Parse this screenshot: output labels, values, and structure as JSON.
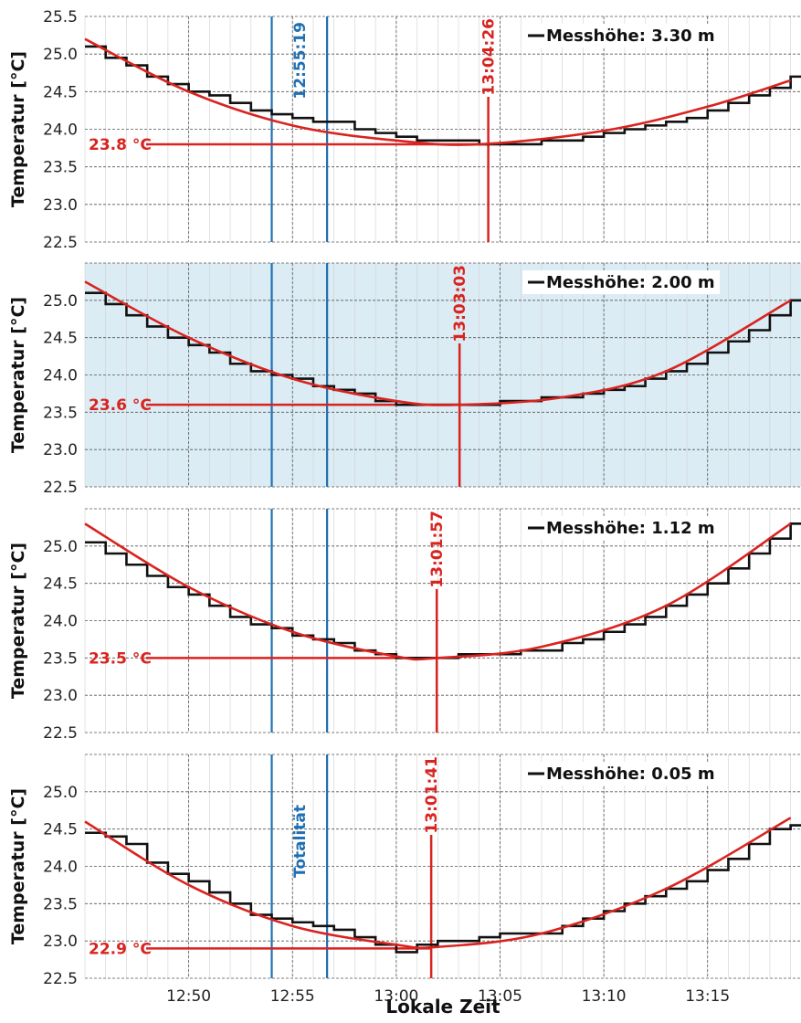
{
  "chart_data": {
    "type": "line",
    "xlabel": "Lokale Zeit",
    "ylabel": "Temperatur [°C]",
    "x_ticks": [
      "12:50",
      "12:55",
      "13:00",
      "13:05",
      "13:10",
      "13:15"
    ],
    "x_range": [
      "12:45:00",
      "13:19:30"
    ],
    "y_ticks": [
      22.5,
      23.0,
      23.5,
      24.0,
      24.5,
      25.0,
      25.5
    ],
    "totality_start": "12:54:00",
    "totality_end": "12:56:40",
    "totality_label": "Totalität",
    "totality_time_label": "12:55:19",
    "colors": {
      "measured": "#111111",
      "fit": "#d9231f",
      "totality": "#1f6fb2",
      "highlight_bg": "#dbecf4",
      "grid": "#999999"
    },
    "panels": [
      {
        "legend": "Messhöhe: 3.30 m",
        "min_temp_label": "23.8 °C",
        "min_temp": 23.8,
        "min_time_label": "13:04:26",
        "min_time": "13:04:26",
        "ylim": [
          22.5,
          25.5
        ],
        "yticks_shown": [
          22.5,
          23.0,
          23.5,
          24.0,
          24.5,
          25.0,
          25.5
        ],
        "highlighted": false,
        "show_totality_time": true,
        "show_totality_text": false,
        "fit_curve": [
          [
            "12:45",
            25.2
          ],
          [
            "12:50",
            24.5
          ],
          [
            "12:55",
            24.05
          ],
          [
            "13:00",
            23.85
          ],
          [
            "13:04",
            23.8
          ],
          [
            "13:10",
            23.98
          ],
          [
            "13:15",
            24.3
          ],
          [
            "13:19",
            24.65
          ]
        ],
        "measured": [
          [
            "12:45",
            25.1
          ],
          [
            "12:46",
            24.95
          ],
          [
            "12:47",
            24.85
          ],
          [
            "12:48",
            24.7
          ],
          [
            "12:49",
            24.6
          ],
          [
            "12:50",
            24.5
          ],
          [
            "12:51",
            24.45
          ],
          [
            "12:52",
            24.35
          ],
          [
            "12:53",
            24.25
          ],
          [
            "12:54",
            24.2
          ],
          [
            "12:55",
            24.15
          ],
          [
            "12:56",
            24.1
          ],
          [
            "12:57",
            24.1
          ],
          [
            "12:58",
            24.0
          ],
          [
            "12:59",
            23.95
          ],
          [
            "13:00",
            23.9
          ],
          [
            "13:01",
            23.85
          ],
          [
            "13:02",
            23.85
          ],
          [
            "13:03",
            23.85
          ],
          [
            "13:04",
            23.8
          ],
          [
            "13:05",
            23.8
          ],
          [
            "13:06",
            23.8
          ],
          [
            "13:07",
            23.85
          ],
          [
            "13:08",
            23.85
          ],
          [
            "13:09",
            23.9
          ],
          [
            "13:10",
            23.95
          ],
          [
            "13:11",
            24.0
          ],
          [
            "13:12",
            24.05
          ],
          [
            "13:13",
            24.1
          ],
          [
            "13:14",
            24.15
          ],
          [
            "13:15",
            24.25
          ],
          [
            "13:16",
            24.35
          ],
          [
            "13:17",
            24.45
          ],
          [
            "13:18",
            24.55
          ],
          [
            "13:19",
            24.7
          ]
        ]
      },
      {
        "legend": "Messhöhe: 2.00 m",
        "min_temp_label": "23.6 °C",
        "min_temp": 23.6,
        "min_time_label": "13:03:03",
        "min_time": "13:03:03",
        "ylim": [
          22.5,
          25.5
        ],
        "yticks_shown": [
          22.5,
          23.0,
          23.5,
          24.0,
          24.5,
          25.0
        ],
        "highlighted": true,
        "show_totality_time": false,
        "show_totality_text": false,
        "fit_curve": [
          [
            "12:45",
            25.25
          ],
          [
            "12:50",
            24.5
          ],
          [
            "12:55",
            23.95
          ],
          [
            "13:00",
            23.65
          ],
          [
            "13:03",
            23.6
          ],
          [
            "13:08",
            23.7
          ],
          [
            "13:13",
            24.05
          ],
          [
            "13:19",
            25.0
          ]
        ],
        "measured": [
          [
            "12:45",
            25.1
          ],
          [
            "12:46",
            24.95
          ],
          [
            "12:47",
            24.8
          ],
          [
            "12:48",
            24.65
          ],
          [
            "12:49",
            24.5
          ],
          [
            "12:50",
            24.4
          ],
          [
            "12:51",
            24.3
          ],
          [
            "12:52",
            24.15
          ],
          [
            "12:53",
            24.05
          ],
          [
            "12:54",
            24.0
          ],
          [
            "12:55",
            23.95
          ],
          [
            "12:56",
            23.85
          ],
          [
            "12:57",
            23.8
          ],
          [
            "12:58",
            23.75
          ],
          [
            "12:59",
            23.65
          ],
          [
            "13:00",
            23.6
          ],
          [
            "13:01",
            23.6
          ],
          [
            "13:02",
            23.6
          ],
          [
            "13:03",
            23.6
          ],
          [
            "13:04",
            23.6
          ],
          [
            "13:05",
            23.65
          ],
          [
            "13:06",
            23.65
          ],
          [
            "13:07",
            23.7
          ],
          [
            "13:08",
            23.7
          ],
          [
            "13:09",
            23.75
          ],
          [
            "13:10",
            23.8
          ],
          [
            "13:11",
            23.85
          ],
          [
            "13:12",
            23.95
          ],
          [
            "13:13",
            24.05
          ],
          [
            "13:14",
            24.15
          ],
          [
            "13:15",
            24.3
          ],
          [
            "13:16",
            24.45
          ],
          [
            "13:17",
            24.6
          ],
          [
            "13:18",
            24.8
          ],
          [
            "13:19",
            25.0
          ]
        ]
      },
      {
        "legend": "Messhöhe: 1.12 m",
        "min_temp_label": "23.5 °C",
        "min_temp": 23.5,
        "min_time_label": "13:01:57",
        "min_time": "13:01:57",
        "ylim": [
          22.5,
          25.5
        ],
        "yticks_shown": [
          22.5,
          23.0,
          23.5,
          24.0,
          24.5,
          25.0
        ],
        "highlighted": false,
        "show_totality_time": false,
        "show_totality_text": false,
        "fit_curve": [
          [
            "12:45",
            25.3
          ],
          [
            "12:50",
            24.45
          ],
          [
            "12:55",
            23.85
          ],
          [
            "13:00",
            23.52
          ],
          [
            "13:02",
            23.5
          ],
          [
            "13:07",
            23.65
          ],
          [
            "13:13",
            24.2
          ],
          [
            "13:19",
            25.3
          ]
        ],
        "measured": [
          [
            "12:45",
            25.05
          ],
          [
            "12:46",
            24.9
          ],
          [
            "12:47",
            24.75
          ],
          [
            "12:48",
            24.6
          ],
          [
            "12:49",
            24.45
          ],
          [
            "12:50",
            24.35
          ],
          [
            "12:51",
            24.2
          ],
          [
            "12:52",
            24.05
          ],
          [
            "12:53",
            23.95
          ],
          [
            "12:54",
            23.9
          ],
          [
            "12:55",
            23.8
          ],
          [
            "12:56",
            23.75
          ],
          [
            "12:57",
            23.7
          ],
          [
            "12:58",
            23.6
          ],
          [
            "12:59",
            23.55
          ],
          [
            "13:00",
            23.5
          ],
          [
            "13:01",
            23.5
          ],
          [
            "13:02",
            23.5
          ],
          [
            "13:03",
            23.55
          ],
          [
            "13:04",
            23.55
          ],
          [
            "13:05",
            23.55
          ],
          [
            "13:06",
            23.6
          ],
          [
            "13:07",
            23.6
          ],
          [
            "13:08",
            23.7
          ],
          [
            "13:09",
            23.75
          ],
          [
            "13:10",
            23.85
          ],
          [
            "13:11",
            23.95
          ],
          [
            "13:12",
            24.05
          ],
          [
            "13:13",
            24.2
          ],
          [
            "13:14",
            24.35
          ],
          [
            "13:15",
            24.5
          ],
          [
            "13:16",
            24.7
          ],
          [
            "13:17",
            24.9
          ],
          [
            "13:18",
            25.1
          ],
          [
            "13:19",
            25.3
          ]
        ]
      },
      {
        "legend": "Messhöhe: 0.05 m",
        "min_temp_label": "22.9 °C",
        "min_temp": 22.9,
        "min_time_label": "13:01:41",
        "min_time": "13:01:41",
        "ylim": [
          22.5,
          25.5
        ],
        "yticks_shown": [
          22.5,
          23.0,
          23.5,
          24.0,
          24.5,
          25.0
        ],
        "highlighted": false,
        "show_totality_time": false,
        "show_totality_text": true,
        "fit_curve": [
          [
            "12:45",
            24.6
          ],
          [
            "12:50",
            23.75
          ],
          [
            "12:55",
            23.2
          ],
          [
            "13:00",
            22.95
          ],
          [
            "13:02",
            22.92
          ],
          [
            "13:07",
            23.1
          ],
          [
            "13:13",
            23.7
          ],
          [
            "13:19",
            24.65
          ]
        ],
        "measured": [
          [
            "12:45",
            24.45
          ],
          [
            "12:46",
            24.4
          ],
          [
            "12:47",
            24.3
          ],
          [
            "12:48",
            24.05
          ],
          [
            "12:49",
            23.9
          ],
          [
            "12:50",
            23.8
          ],
          [
            "12:51",
            23.65
          ],
          [
            "12:52",
            23.5
          ],
          [
            "12:53",
            23.35
          ],
          [
            "12:54",
            23.3
          ],
          [
            "12:55",
            23.25
          ],
          [
            "12:56",
            23.2
          ],
          [
            "12:57",
            23.15
          ],
          [
            "12:58",
            23.05
          ],
          [
            "12:59",
            22.95
          ],
          [
            "13:00",
            22.85
          ],
          [
            "13:01",
            22.95
          ],
          [
            "13:02",
            23.0
          ],
          [
            "13:03",
            23.0
          ],
          [
            "13:04",
            23.05
          ],
          [
            "13:05",
            23.1
          ],
          [
            "13:06",
            23.1
          ],
          [
            "13:07",
            23.1
          ],
          [
            "13:08",
            23.2
          ],
          [
            "13:09",
            23.3
          ],
          [
            "13:10",
            23.4
          ],
          [
            "13:11",
            23.5
          ],
          [
            "13:12",
            23.6
          ],
          [
            "13:13",
            23.7
          ],
          [
            "13:14",
            23.8
          ],
          [
            "13:15",
            23.95
          ],
          [
            "13:16",
            24.1
          ],
          [
            "13:17",
            24.3
          ],
          [
            "13:18",
            24.5
          ],
          [
            "13:19",
            24.55
          ]
        ]
      }
    ]
  }
}
